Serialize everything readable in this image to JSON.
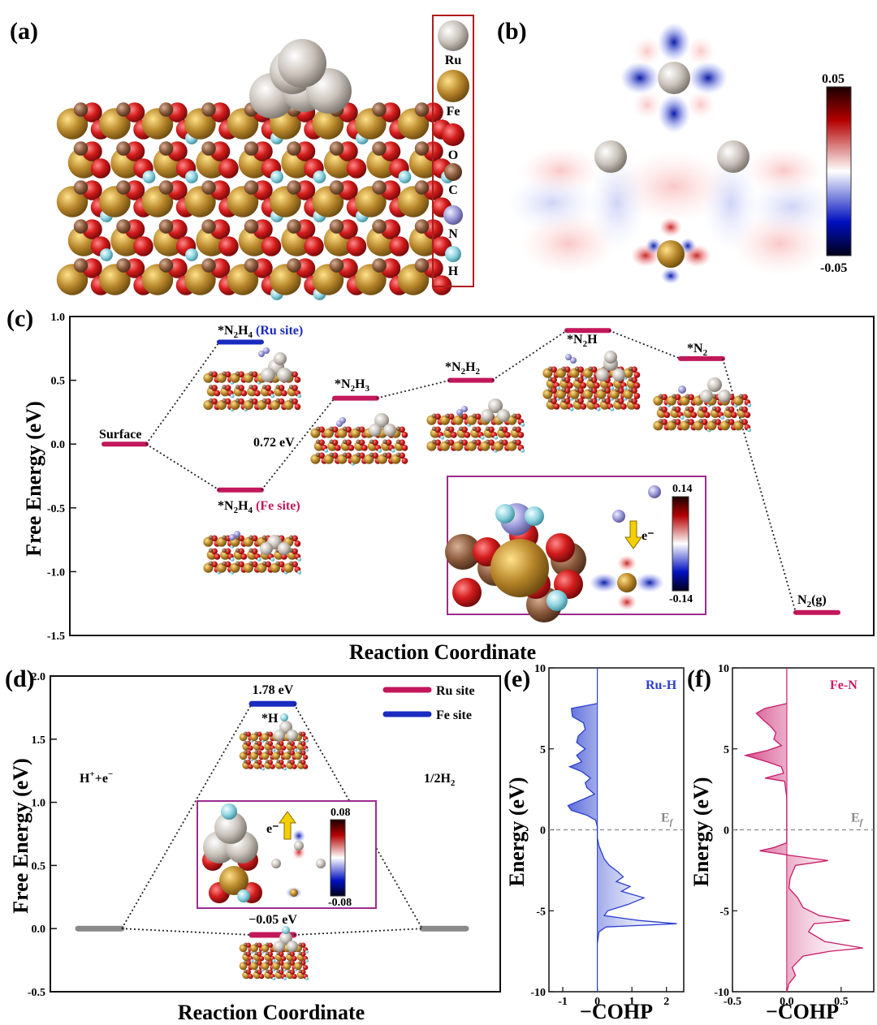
{
  "panels": {
    "a": {
      "label": "(a)",
      "legend": [
        "Ru",
        "Fe",
        "O",
        "C",
        "N",
        "H"
      ],
      "colors": {
        "Ru": "#c9c2ba",
        "Fe": "#b8862a",
        "O": "#d41c1c",
        "C": "#8a5a3c",
        "N": "#9a98d8",
        "H": "#8fd3e0"
      }
    },
    "b": {
      "label": "(b)",
      "colorbar": {
        "max": "0.05",
        "min": "-0.05"
      }
    },
    "c": {
      "label": "(c)",
      "ylabel": "Free Energy (eV)",
      "xlabel": "Reaction Coordinate",
      "barrier": "0.72 eV",
      "inset_colorbar": {
        "max": "0.14",
        "min": "-0.14",
        "arrow": "e⁻"
      }
    },
    "d": {
      "label": "(d)",
      "ylabel": "Free Energy (eV)",
      "xlabel": "Reaction Coordinate",
      "inset_colorbar": {
        "max": "0.08",
        "min": "-0.08",
        "arrow": "e⁻"
      }
    },
    "e": {
      "label": "(e)",
      "ylabel": "Energy (eV)",
      "xlabel": "−COHP",
      "bond": "Ru-H",
      "ef": "E_f"
    },
    "f": {
      "label": "(f)",
      "ylabel": "Energy (eV)",
      "xlabel": "−COHP",
      "bond": "Fe-N",
      "ef": "E_f"
    }
  },
  "chart_data": [
    {
      "panel": "c",
      "type": "line",
      "ylabel": "Free Energy (eV)",
      "xlabel": "Reaction Coordinate",
      "ylim": [
        -1.5,
        1.0
      ],
      "yticks": [
        "-1.5",
        "-1.0",
        "-0.5",
        "0.0",
        "0.5",
        "1.0"
      ],
      "levels": [
        {
          "name": "Surface",
          "y": 0.0,
          "color": "#c2185b"
        },
        {
          "name": "*N2H4 (Ru site)",
          "y": 0.8,
          "color": "#1a2bbf"
        },
        {
          "name": "*N2H4 (Fe site)",
          "y": -0.36,
          "color": "#c2185b"
        },
        {
          "name": "*N2H3",
          "y": 0.36,
          "color": "#c2185b"
        },
        {
          "name": "*N2H2",
          "y": 0.5,
          "color": "#c2185b"
        },
        {
          "name": "*N2H",
          "y": 0.89,
          "color": "#c2185b"
        },
        {
          "name": "*N2",
          "y": 0.67,
          "color": "#c2185b"
        },
        {
          "name": "N2(g)",
          "y": -1.32,
          "color": "#c2185b"
        }
      ]
    },
    {
      "panel": "d",
      "type": "line",
      "ylabel": "Free Energy (eV)",
      "xlabel": "Reaction Coordinate",
      "ylim": [
        -0.5,
        2.0
      ],
      "yticks": [
        "-0.5",
        "0.0",
        "0.5",
        "1.0",
        "1.5",
        "2.0"
      ],
      "legend": [
        {
          "name": "Ru site",
          "color": "#c2185b"
        },
        {
          "name": "Fe site",
          "color": "#1a2bbf"
        }
      ],
      "levels": [
        {
          "name": "H⁺+e⁻",
          "y": 0.0,
          "color": "#8a8a8a"
        },
        {
          "name": "*H (Fe site)",
          "y": 1.78,
          "color": "#1a2bbf",
          "label": "1.78 eV"
        },
        {
          "name": "*H (Ru site)",
          "y": -0.05,
          "color": "#c2185b",
          "label": "−0.05 eV"
        },
        {
          "name": "1/2H2",
          "y": 0.0,
          "color": "#8a8a8a"
        }
      ]
    },
    {
      "panel": "e",
      "type": "area",
      "series_name": "Ru-H",
      "color": "#2a3fd0",
      "xlim": [
        -1.4,
        2.5
      ],
      "ylim": [
        -10,
        10
      ],
      "xticks": [
        "-1",
        "0",
        "1",
        "2"
      ],
      "yticks": [
        "-10",
        "-5",
        "0",
        "5",
        "10"
      ],
      "curve": [
        [
          7.8,
          0
        ],
        [
          7.5,
          -0.75
        ],
        [
          7.0,
          -0.72
        ],
        [
          6.6,
          -0.4
        ],
        [
          6.2,
          -0.35
        ],
        [
          5.8,
          -0.55
        ],
        [
          5.4,
          -0.6
        ],
        [
          5.0,
          -0.35
        ],
        [
          4.6,
          -0.6
        ],
        [
          4.2,
          -0.45
        ],
        [
          3.9,
          -0.8
        ],
        [
          3.6,
          -0.45
        ],
        [
          3.2,
          -0.2
        ],
        [
          2.9,
          -0.35
        ],
        [
          2.6,
          -0.3
        ],
        [
          2.2,
          -0.08
        ],
        [
          1.9,
          -0.4
        ],
        [
          1.5,
          -0.85
        ],
        [
          1.2,
          -0.75
        ],
        [
          0.9,
          -0.3
        ],
        [
          0.6,
          -0.05
        ],
        [
          0.2,
          0
        ],
        [
          -0.5,
          0
        ],
        [
          -1.0,
          0.05
        ],
        [
          -1.8,
          0.2
        ],
        [
          -2.2,
          0.35
        ],
        [
          -2.6,
          0.6
        ],
        [
          -2.9,
          0.75
        ],
        [
          -3.2,
          0.55
        ],
        [
          -3.5,
          0.95
        ],
        [
          -3.8,
          0.7
        ],
        [
          -4.2,
          1.35
        ],
        [
          -4.6,
          0.9
        ],
        [
          -5.0,
          0.3
        ],
        [
          -5.3,
          0.2
        ],
        [
          -5.6,
          1.2
        ],
        [
          -5.8,
          2.3
        ],
        [
          -6.0,
          0.25
        ],
        [
          -6.3,
          0.05
        ],
        [
          -7.0,
          0
        ]
      ]
    },
    {
      "panel": "f",
      "type": "area",
      "series_name": "Fe-N",
      "color": "#c81a68",
      "xlim": [
        -0.5,
        0.8
      ],
      "ylim": [
        -10,
        10
      ],
      "xticks": [
        "-0.5",
        "0.0",
        "0.5"
      ],
      "yticks": [
        "-10",
        "-5",
        "0",
        "5",
        "10"
      ],
      "curve": [
        [
          7.8,
          0
        ],
        [
          7.5,
          -0.2
        ],
        [
          7.2,
          -0.28
        ],
        [
          6.8,
          -0.22
        ],
        [
          6.4,
          -0.15
        ],
        [
          6.0,
          -0.1
        ],
        [
          5.6,
          -0.12
        ],
        [
          5.2,
          -0.05
        ],
        [
          4.9,
          -0.18
        ],
        [
          4.6,
          -0.38
        ],
        [
          4.2,
          -0.18
        ],
        [
          3.9,
          -0.05
        ],
        [
          3.5,
          -0.03
        ],
        [
          3.2,
          -0.2
        ],
        [
          3.0,
          -0.02
        ],
        [
          2.0,
          0
        ],
        [
          0.5,
          0
        ],
        [
          -0.8,
          0
        ],
        [
          -1.1,
          -0.12
        ],
        [
          -1.3,
          -0.25
        ],
        [
          -1.6,
          0.05
        ],
        [
          -1.9,
          0.38
        ],
        [
          -2.2,
          0.08
        ],
        [
          -3.0,
          0.03
        ],
        [
          -3.6,
          0.02
        ],
        [
          -4.2,
          0.1
        ],
        [
          -4.8,
          0.15
        ],
        [
          -5.3,
          0.3
        ],
        [
          -5.6,
          0.58
        ],
        [
          -5.8,
          0.25
        ],
        [
          -6.3,
          0.2
        ],
        [
          -6.9,
          0.35
        ],
        [
          -7.3,
          0.7
        ],
        [
          -7.5,
          0.4
        ],
        [
          -7.8,
          0.15
        ],
        [
          -8.5,
          0.05
        ],
        [
          -9.0,
          0.08
        ],
        [
          -9.5,
          0.02
        ],
        [
          -10,
          0
        ]
      ]
    }
  ]
}
